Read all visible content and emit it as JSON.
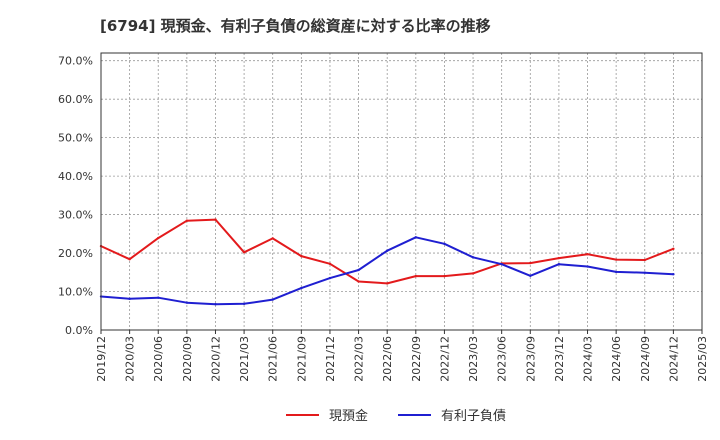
{
  "chart_data": {
    "type": "line",
    "title": "[6794]  現預金、有利子負債の総資産に対する比率の推移",
    "xlabel": "",
    "ylabel": "",
    "ylim": [
      0,
      72
    ],
    "yticks": [
      {
        "value": 0,
        "label": "0.0%"
      },
      {
        "value": 10,
        "label": "10.0%"
      },
      {
        "value": 20,
        "label": "20.0%"
      },
      {
        "value": 30,
        "label": "30.0%"
      },
      {
        "value": 40,
        "label": "40.0%"
      },
      {
        "value": 50,
        "label": "50.0%"
      },
      {
        "value": 60,
        "label": "60.0%"
      },
      {
        "value": 70,
        "label": "70.0%"
      }
    ],
    "categories": [
      "2019/12",
      "2020/03",
      "2020/06",
      "2020/09",
      "2020/12",
      "2021/03",
      "2021/06",
      "2021/09",
      "2021/12",
      "2022/03",
      "2022/06",
      "2022/09",
      "2022/12",
      "2023/03",
      "2023/06",
      "2023/09",
      "2023/12",
      "2024/03",
      "2024/06",
      "2024/09",
      "2024/12",
      "2025/03"
    ],
    "grid": true,
    "legend_position": "bottom-center",
    "series": [
      {
        "name": "現預金",
        "color": "#e31a1c",
        "values": [
          21.8,
          18.4,
          23.9,
          28.4,
          28.7,
          20.2,
          23.8,
          19.2,
          17.2,
          12.6,
          12.1,
          14.0,
          14.0,
          14.7,
          17.3,
          17.4,
          18.7,
          19.7,
          18.3,
          18.2,
          21.1,
          null
        ]
      },
      {
        "name": "有利子負債",
        "color": "#1f1fd1",
        "values": [
          8.7,
          8.1,
          8.4,
          7.1,
          6.7,
          6.8,
          7.9,
          10.9,
          13.5,
          15.6,
          20.6,
          24.1,
          22.4,
          18.9,
          17.1,
          14.1,
          17.1,
          16.5,
          15.1,
          14.9,
          14.5,
          null
        ]
      }
    ]
  }
}
